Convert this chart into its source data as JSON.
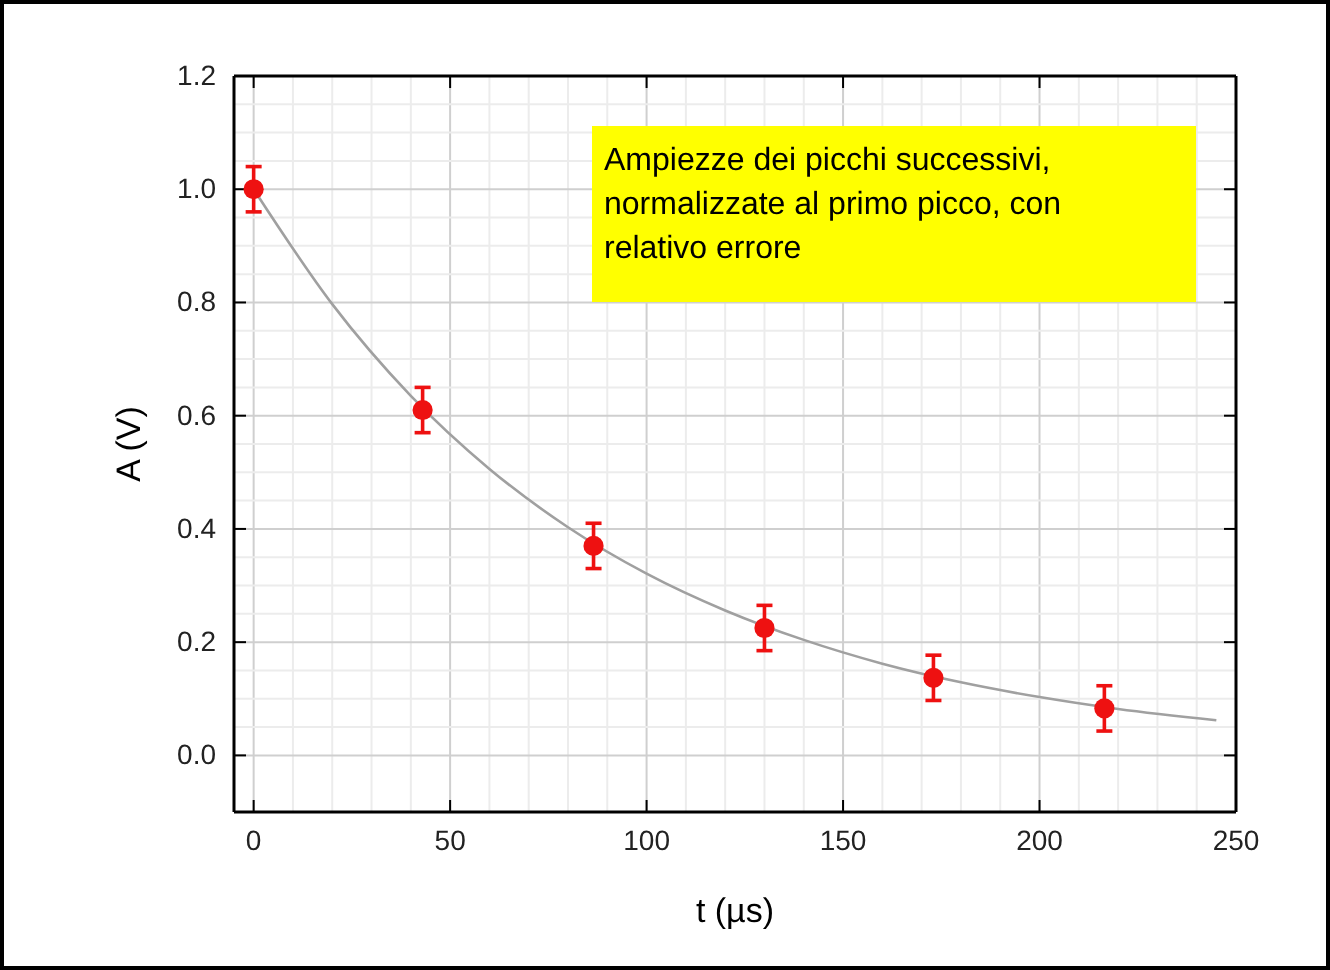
{
  "chart_data": {
    "type": "scatter",
    "xlabel": "t (µs)",
    "ylabel": "A (V)",
    "xlim": [
      -5,
      250
    ],
    "ylim": [
      -0.1,
      1.2
    ],
    "xticks": [
      0,
      50,
      100,
      150,
      200,
      250
    ],
    "yticks": [
      {
        "value": 0,
        "label": "0.0"
      },
      {
        "value": 0.2,
        "label": "0.2"
      },
      {
        "value": 0.4,
        "label": "0.4"
      },
      {
        "value": 0.6,
        "label": "0.6"
      },
      {
        "value": 0.8,
        "label": "0.8"
      },
      {
        "value": 1,
        "label": "1.0"
      },
      {
        "value": 1.2,
        "label": "1.2"
      }
    ],
    "grid": true,
    "marker": "circle",
    "annotations": [
      "Ampiezze dei picchi successivi, normalizzate al primo picco, con relativo errore"
    ],
    "series": [
      {
        "type": "line",
        "color": "#a0a0a0",
        "marker": "none",
        "line_style": "solid",
        "x": [
          0,
          20,
          40,
          60,
          80,
          100,
          120,
          140,
          160,
          180,
          200,
          220,
          245
        ],
        "values": [
          1,
          0.797,
          0.635,
          0.506,
          0.403,
          0.321,
          0.256,
          0.204,
          0.162,
          0.129,
          0.103,
          0.082,
          0.062
        ]
      },
      {
        "color": "#ee1111",
        "x": [
          0,
          43,
          86.5,
          130,
          173,
          216.5
        ],
        "values": [
          1.0,
          0.61,
          0.37,
          0.225,
          0.137,
          0.083
        ],
        "errors": [
          0.04,
          0.04,
          0.04,
          0.04,
          0.04,
          0.04
        ]
      }
    ]
  }
}
